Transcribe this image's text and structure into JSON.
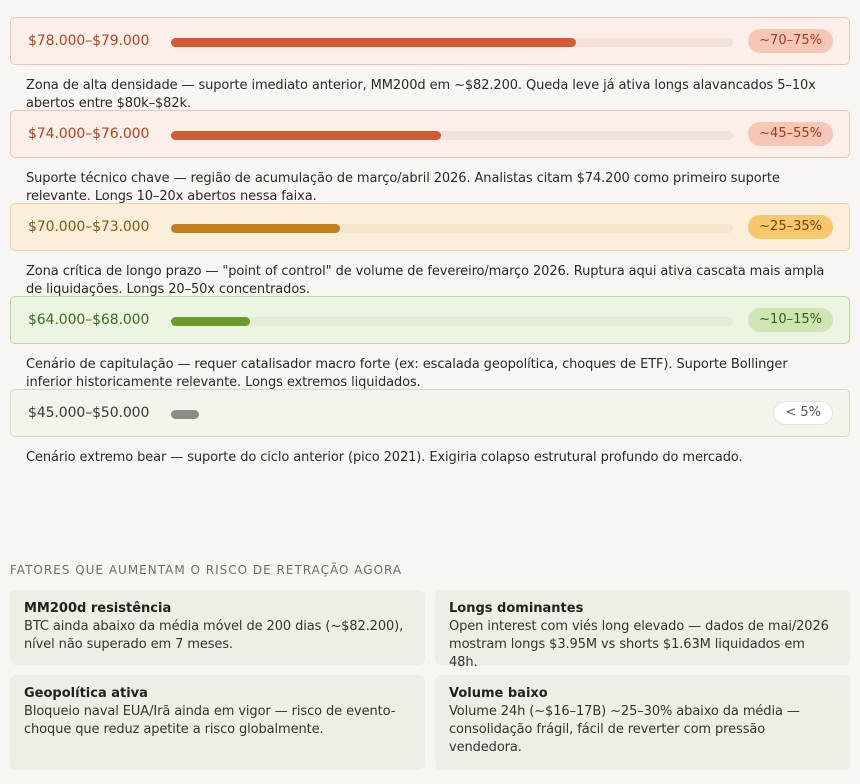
{
  "zones": [
    {
      "price": "$78.000–$79.000",
      "badge": "~70–75%",
      "level": 0.72,
      "theme": "red",
      "description": "Zona de alta densidade — suporte imediato anterior, MM200d em ~$82.200. Queda leve já ativa longs alavancados 5–10x abertos entre $80k–$82k."
    },
    {
      "price": "$74.000–$76.000",
      "badge": "~45–55%",
      "level": 0.48,
      "theme": "red",
      "description": "Suporte técnico chave — região de acumulação de março/abril 2026. Analistas citam $74.200 como primeiro suporte relevante. Longs 10–20x abertos nessa faixa."
    },
    {
      "price": "$70.000–$73.000",
      "badge": "~25–35%",
      "level": 0.3,
      "theme": "amber",
      "description": "Zona crítica de longo prazo — \"point of control\" de volume de fevereiro/março 2026. Ruptura aqui ativa cascata mais ampla de liquidações. Longs 20–50x concentrados."
    },
    {
      "price": "$64.000–$68.000",
      "badge": "~10–15%",
      "level": 0.14,
      "theme": "green",
      "description": "Cenário de capitulação — requer catalisador macro forte (ex: escalada geopolítica, choques de ETF). Suporte Bollinger inferior historicamente relevante. Longs extremos liquidados."
    },
    {
      "price": "$45.000–$50.000",
      "badge": "< 5%",
      "level": 0.05,
      "theme": "grey",
      "description": "Cenário extremo bear — suporte do ciclo anterior (pico 2021). Exigiria colapso estrutural profundo do mercado."
    }
  ],
  "factors": {
    "title": "FATORES QUE AUMENTAM O RISCO DE RETRAÇÃO AGORA",
    "cards": [
      {
        "title": "MM200d resistência",
        "text": "BTC ainda abaixo da média móvel de 200 dias (~$82.200), nível não superado em 7 meses."
      },
      {
        "title": "Longs dominantes",
        "text": "Open interest com viés long elevado — dados de mai/2026 mostram longs $3.95M vs shorts $1.63M liquidados em 48h."
      },
      {
        "title": "Geopolítica ativa",
        "text": "Bloqueio naval EUA/Irã ainda em vigor — risco de evento-choque que reduz apetite a risco globalmente."
      },
      {
        "title": "Volume baixo",
        "text": "Volume 24h (~$16–17B) ~25–30% abaixo da média — consolidação frágil, fácil de reverter com pressão vendedora."
      }
    ]
  }
}
